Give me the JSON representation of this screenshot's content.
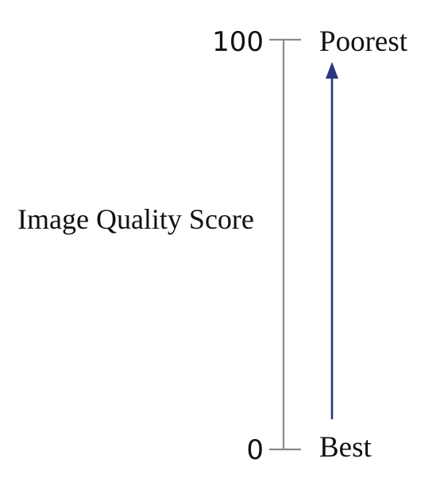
{
  "scale": {
    "title": "Image Quality Score",
    "top": {
      "value": "100",
      "label": "Poorest"
    },
    "bottom": {
      "value": "0",
      "label": "Best"
    },
    "arrow_direction": "upward",
    "colors": {
      "axis": "#8a8a8a",
      "arrow": "#2a3580",
      "text": "#111111"
    }
  }
}
